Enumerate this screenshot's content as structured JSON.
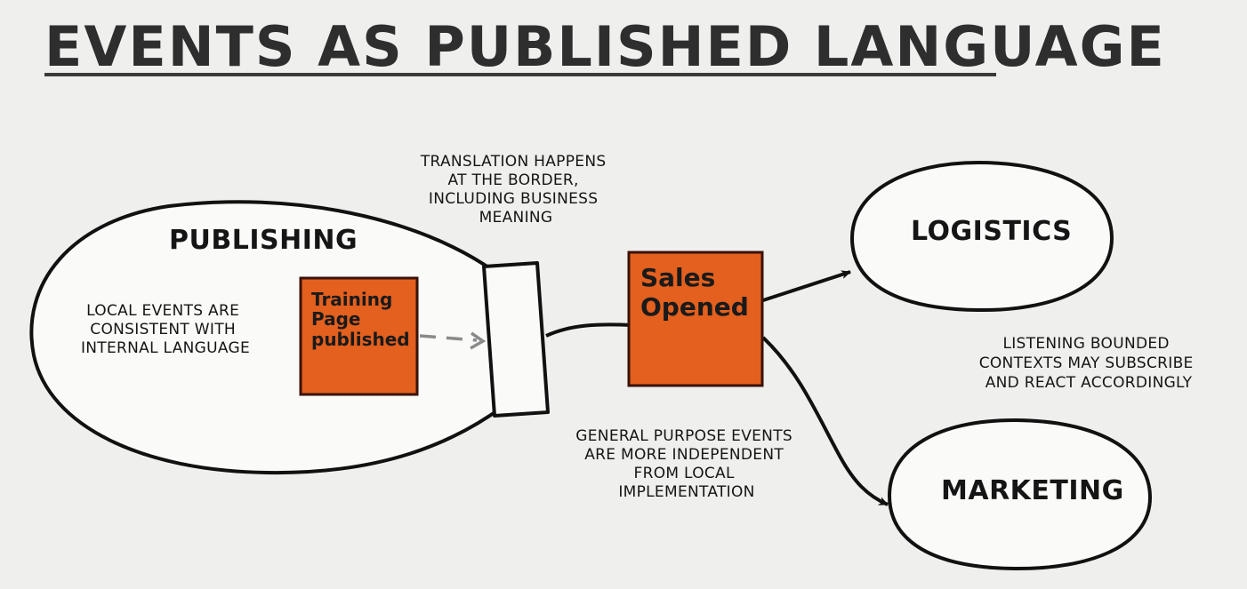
{
  "title": "Events as Published language",
  "contexts": {
    "publishing": "PUBLISHING",
    "logistics": "LOGISTICS",
    "marketing": "MARKETING"
  },
  "local_events_note": [
    "Local Events are",
    "consistent with",
    "internal Language"
  ],
  "training_event": [
    "Training",
    "Page",
    "published"
  ],
  "sales_event": [
    "Sales",
    "Opened"
  ],
  "translation_note": [
    "TRANSLATION HAPPENS",
    "AT THE BORDER,",
    "INCLUDING BUSINESS",
    "MEANING"
  ],
  "general_purpose_note": [
    "General purpose events",
    "are more independent",
    "from local",
    "implementation"
  ],
  "listening_note": [
    "Listening Bounded",
    "Contexts may subscribe",
    "and react accordingly"
  ],
  "colors": {
    "event_fill": "#e3601f",
    "event_border": "#3a1208",
    "background": "#efefed",
    "ink": "#111111",
    "dashed_arrow": "#8a8a8a"
  }
}
